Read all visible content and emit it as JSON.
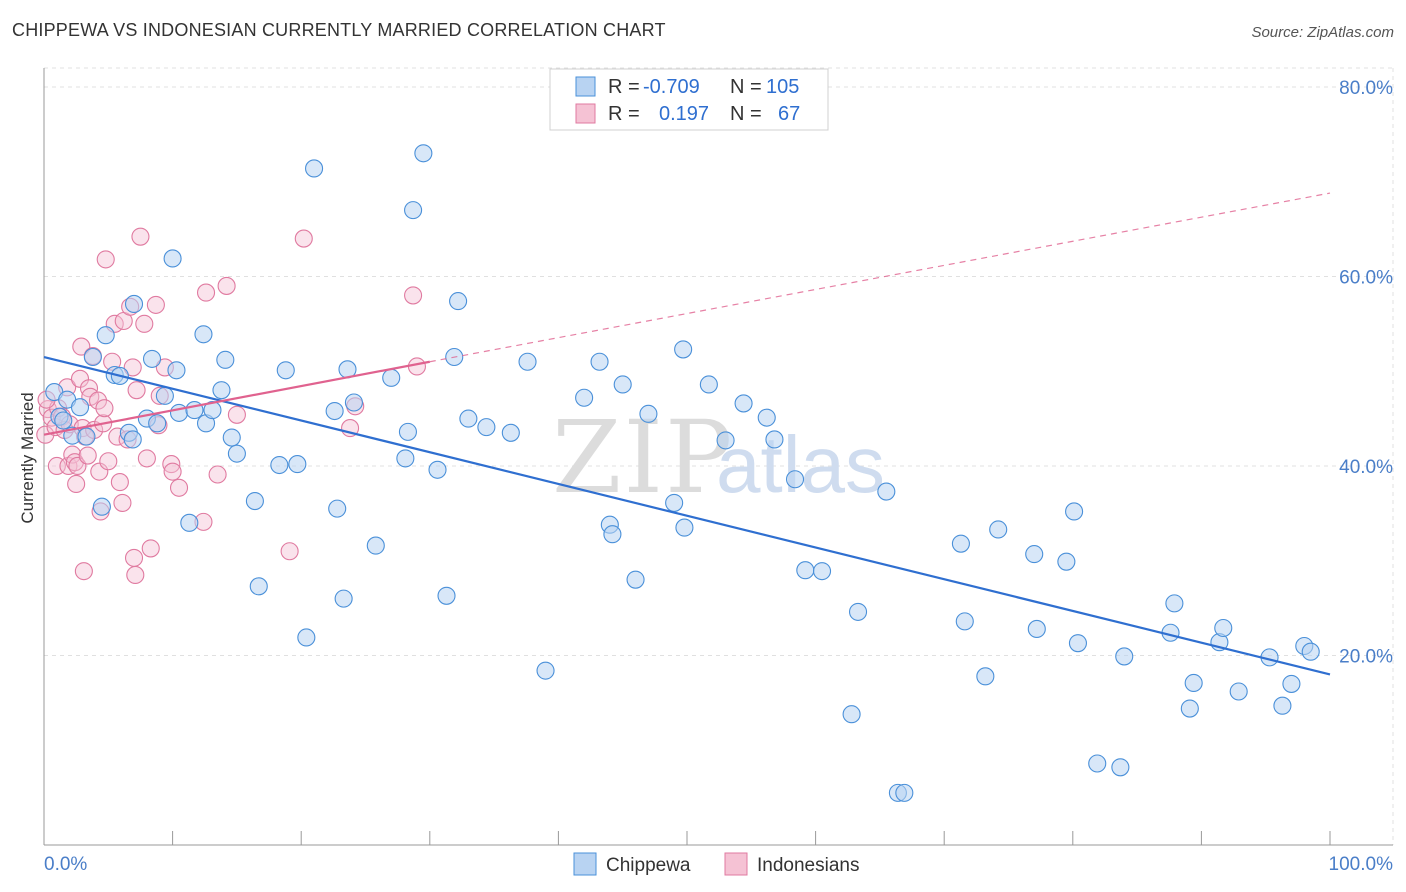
{
  "title": "CHIPPEWA VS INDONESIAN CURRENTLY MARRIED CORRELATION CHART",
  "source": "Source: ZipAtlas.com",
  "watermark": {
    "zip": "ZIP",
    "atlas": "atlas"
  },
  "colors": {
    "blue": "#4a90d9",
    "blue_fill": "#b8d3f2",
    "blue_line": "#2f6fd0",
    "pink": "#e07aa0",
    "pink_fill": "#f5c2d4",
    "pink_line": "#e0628f",
    "grid": "#e0e0e0",
    "tick_text": "#4a7ec8"
  },
  "legend": {
    "row1": {
      "r_label": "R =",
      "r_value": "-0.709",
      "n_label": "N =",
      "n_value": "105"
    },
    "row2": {
      "r_label": "R =",
      "r_value": "0.197",
      "n_label": "N =",
      "n_value": "67"
    }
  },
  "chart_data": {
    "type": "scatter",
    "title": "CHIPPEWA VS INDONESIAN CURRENTLY MARRIED CORRELATION CHART",
    "xlabel": "",
    "ylabel": "Currently Married",
    "xlim": [
      0,
      100
    ],
    "ylim": [
      0,
      82
    ],
    "x_tick_labels": [
      "0.0%",
      "100.0%"
    ],
    "y_ticks": [
      20,
      40,
      60,
      80
    ],
    "y_tick_labels": [
      "20.0%",
      "40.0%",
      "60.0%",
      "80.0%"
    ],
    "grid": true,
    "legend_position": "top-center",
    "series": [
      {
        "name": "Chippewa",
        "color": "#4a90d9",
        "r": -0.709,
        "n": 105,
        "trend": {
          "x": [
            0,
            100
          ],
          "y": [
            51.5,
            18.0
          ],
          "style": "solid"
        },
        "points": [
          [
            0.8,
            47.8
          ],
          [
            1.2,
            45.2
          ],
          [
            1.5,
            44.8
          ],
          [
            1.8,
            47.0
          ],
          [
            2.2,
            43.2
          ],
          [
            2.8,
            46.2
          ],
          [
            3.3,
            43.1
          ],
          [
            3.8,
            51.5
          ],
          [
            4.5,
            35.7
          ],
          [
            4.8,
            53.8
          ],
          [
            5.5,
            49.6
          ],
          [
            5.9,
            49.5
          ],
          [
            6.6,
            43.5
          ],
          [
            6.9,
            42.8
          ],
          [
            7.0,
            57.1
          ],
          [
            8.0,
            45.0
          ],
          [
            8.4,
            51.3
          ],
          [
            8.8,
            44.5
          ],
          [
            9.4,
            47.4
          ],
          [
            10.0,
            61.9
          ],
          [
            10.3,
            50.1
          ],
          [
            10.5,
            45.6
          ],
          [
            11.3,
            34.0
          ],
          [
            11.7,
            45.9
          ],
          [
            12.4,
            53.9
          ],
          [
            12.6,
            44.5
          ],
          [
            13.1,
            45.9
          ],
          [
            13.8,
            48.0
          ],
          [
            14.1,
            51.2
          ],
          [
            14.6,
            43.0
          ],
          [
            15.0,
            41.3
          ],
          [
            16.4,
            36.3
          ],
          [
            16.7,
            27.3
          ],
          [
            18.3,
            40.1
          ],
          [
            18.8,
            50.1
          ],
          [
            19.7,
            40.2
          ],
          [
            20.4,
            21.9
          ],
          [
            21.0,
            71.4
          ],
          [
            22.6,
            45.8
          ],
          [
            22.8,
            35.5
          ],
          [
            23.3,
            26.0
          ],
          [
            23.6,
            50.2
          ],
          [
            24.1,
            46.7
          ],
          [
            25.8,
            31.6
          ],
          [
            27.0,
            49.3
          ],
          [
            28.1,
            40.8
          ],
          [
            28.3,
            43.6
          ],
          [
            28.7,
            67.0
          ],
          [
            29.5,
            73.0
          ],
          [
            30.6,
            39.6
          ],
          [
            31.3,
            26.3
          ],
          [
            31.9,
            51.5
          ],
          [
            32.2,
            57.4
          ],
          [
            33.0,
            45.0
          ],
          [
            34.4,
            44.1
          ],
          [
            36.3,
            43.5
          ],
          [
            37.6,
            51.0
          ],
          [
            39.0,
            18.4
          ],
          [
            42.0,
            47.2
          ],
          [
            43.2,
            51.0
          ],
          [
            44.0,
            33.8
          ],
          [
            44.2,
            32.8
          ],
          [
            45.0,
            48.6
          ],
          [
            46.0,
            28.0
          ],
          [
            47.0,
            45.5
          ],
          [
            49.0,
            36.1
          ],
          [
            49.7,
            52.3
          ],
          [
            49.8,
            33.5
          ],
          [
            51.7,
            48.6
          ],
          [
            53.0,
            42.7
          ],
          [
            54.4,
            46.6
          ],
          [
            56.2,
            45.1
          ],
          [
            58.4,
            38.6
          ],
          [
            59.2,
            29.0
          ],
          [
            62.8,
            13.8
          ],
          [
            63.3,
            24.6
          ],
          [
            65.5,
            37.3
          ],
          [
            66.4,
            5.5
          ],
          [
            66.9,
            5.5
          ],
          [
            71.3,
            31.8
          ],
          [
            71.6,
            23.6
          ],
          [
            73.2,
            17.8
          ],
          [
            74.2,
            33.3
          ],
          [
            77.0,
            30.7
          ],
          [
            77.2,
            22.8
          ],
          [
            79.5,
            29.9
          ],
          [
            80.1,
            35.2
          ],
          [
            80.4,
            21.3
          ],
          [
            81.9,
            8.6
          ],
          [
            83.7,
            8.2
          ],
          [
            84.0,
            19.9
          ],
          [
            87.6,
            22.4
          ],
          [
            87.9,
            25.5
          ],
          [
            89.1,
            14.4
          ],
          [
            89.4,
            17.1
          ],
          [
            91.4,
            21.4
          ],
          [
            91.7,
            22.9
          ],
          [
            92.9,
            16.2
          ],
          [
            95.3,
            19.8
          ],
          [
            96.3,
            14.7
          ],
          [
            97.0,
            17.0
          ],
          [
            98.0,
            21.0
          ],
          [
            98.5,
            20.4
          ],
          [
            60.5,
            28.9
          ],
          [
            56.8,
            42.8
          ]
        ]
      },
      {
        "name": "Indonesians",
        "color": "#e07aa0",
        "r": 0.197,
        "n": 67,
        "trend": {
          "x": [
            0,
            30
          ],
          "y": [
            43.3,
            51.0
          ],
          "style": "solid",
          "extended_x": [
            30,
            100
          ],
          "extended_y": [
            51.0,
            68.8
          ],
          "extended_style": "dashed"
        },
        "points": [
          [
            0.1,
            43.3
          ],
          [
            0.3,
            46.0
          ],
          [
            0.6,
            45.1
          ],
          [
            0.9,
            44.1
          ],
          [
            1.0,
            40.0
          ],
          [
            1.1,
            46.1
          ],
          [
            1.4,
            45.2
          ],
          [
            1.6,
            43.8
          ],
          [
            1.8,
            48.3
          ],
          [
            1.9,
            40.0
          ],
          [
            2.0,
            44.4
          ],
          [
            2.2,
            41.2
          ],
          [
            2.4,
            40.4
          ],
          [
            2.5,
            38.1
          ],
          [
            2.6,
            40.0
          ],
          [
            2.8,
            49.2
          ],
          [
            2.9,
            52.6
          ],
          [
            3.0,
            44.0
          ],
          [
            3.1,
            28.9
          ],
          [
            3.2,
            43.1
          ],
          [
            3.4,
            41.1
          ],
          [
            3.5,
            48.2
          ],
          [
            3.6,
            47.3
          ],
          [
            3.8,
            51.6
          ],
          [
            3.9,
            43.8
          ],
          [
            4.2,
            46.9
          ],
          [
            4.3,
            39.4
          ],
          [
            4.4,
            35.2
          ],
          [
            4.6,
            44.5
          ],
          [
            4.7,
            46.1
          ],
          [
            4.8,
            61.8
          ],
          [
            5.0,
            40.5
          ],
          [
            5.3,
            51.0
          ],
          [
            5.5,
            55.0
          ],
          [
            5.7,
            43.1
          ],
          [
            5.9,
            38.3
          ],
          [
            6.1,
            36.1
          ],
          [
            6.2,
            55.3
          ],
          [
            6.5,
            42.8
          ],
          [
            6.7,
            56.8
          ],
          [
            7.0,
            30.3
          ],
          [
            7.1,
            28.5
          ],
          [
            7.2,
            48.0
          ],
          [
            7.5,
            64.2
          ],
          [
            7.8,
            55.0
          ],
          [
            8.0,
            40.8
          ],
          [
            8.3,
            31.3
          ],
          [
            8.7,
            57.0
          ],
          [
            8.9,
            44.3
          ],
          [
            9.0,
            47.4
          ],
          [
            9.4,
            50.4
          ],
          [
            9.9,
            40.2
          ],
          [
            10.0,
            39.4
          ],
          [
            10.5,
            37.7
          ],
          [
            12.4,
            34.1
          ],
          [
            12.6,
            58.3
          ],
          [
            13.5,
            39.1
          ],
          [
            14.2,
            59.0
          ],
          [
            15.0,
            45.4
          ],
          [
            19.1,
            31.0
          ],
          [
            20.2,
            64.0
          ],
          [
            23.8,
            44.0
          ],
          [
            24.2,
            46.3
          ],
          [
            28.7,
            58.0
          ],
          [
            29.0,
            50.5
          ],
          [
            0.2,
            47.0
          ],
          [
            6.9,
            50.4
          ]
        ]
      }
    ]
  },
  "bottom_legend": {
    "item1": "Chippewa",
    "item2": "Indonesians"
  }
}
